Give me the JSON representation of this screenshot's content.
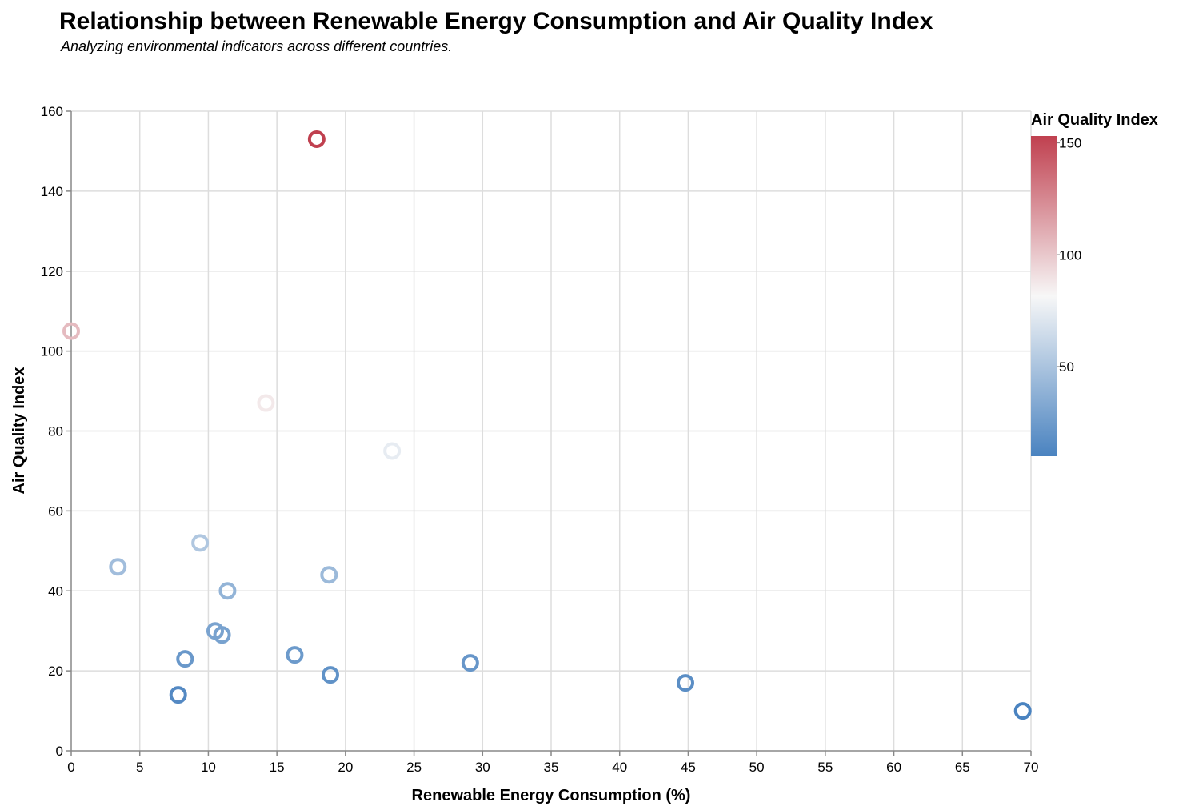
{
  "colors": {
    "scale_low": "#4a83c0",
    "scale_mid": "#f7f7f7",
    "scale_high": "#c0404f",
    "grid": "#dddddd",
    "axis": "#888888"
  },
  "chart_data": {
    "type": "scatter",
    "title": "Relationship between Renewable Energy Consumption and Air Quality Index",
    "subtitle": "Analyzing environmental indicators across different countries.",
    "xlabel": "Renewable Energy Consumption (%)",
    "ylabel": "Air Quality Index",
    "xlim": [
      0,
      70
    ],
    "ylim": [
      0,
      160
    ],
    "x_ticks": [
      0,
      5,
      10,
      15,
      20,
      25,
      30,
      35,
      40,
      45,
      50,
      55,
      60,
      65,
      70
    ],
    "y_ticks": [
      0,
      20,
      40,
      60,
      80,
      100,
      120,
      140,
      160
    ],
    "grid": true,
    "legend": {
      "title": "Air Quality Index",
      "placement": "right",
      "type": "gradient",
      "domain": [
        10,
        153
      ],
      "ticks": [
        50,
        100,
        150
      ]
    },
    "points": [
      {
        "x": 17.9,
        "y": 153
      },
      {
        "x": 0.0,
        "y": 105
      },
      {
        "x": 14.2,
        "y": 87
      },
      {
        "x": 23.4,
        "y": 75
      },
      {
        "x": 9.4,
        "y": 52
      },
      {
        "x": 3.4,
        "y": 46
      },
      {
        "x": 18.8,
        "y": 44
      },
      {
        "x": 11.4,
        "y": 40
      },
      {
        "x": 10.5,
        "y": 30
      },
      {
        "x": 11.0,
        "y": 29
      },
      {
        "x": 16.3,
        "y": 24
      },
      {
        "x": 8.3,
        "y": 23
      },
      {
        "x": 29.1,
        "y": 22
      },
      {
        "x": 18.9,
        "y": 19
      },
      {
        "x": 44.8,
        "y": 17
      },
      {
        "x": 7.8,
        "y": 14
      },
      {
        "x": 69.4,
        "y": 10
      }
    ]
  }
}
